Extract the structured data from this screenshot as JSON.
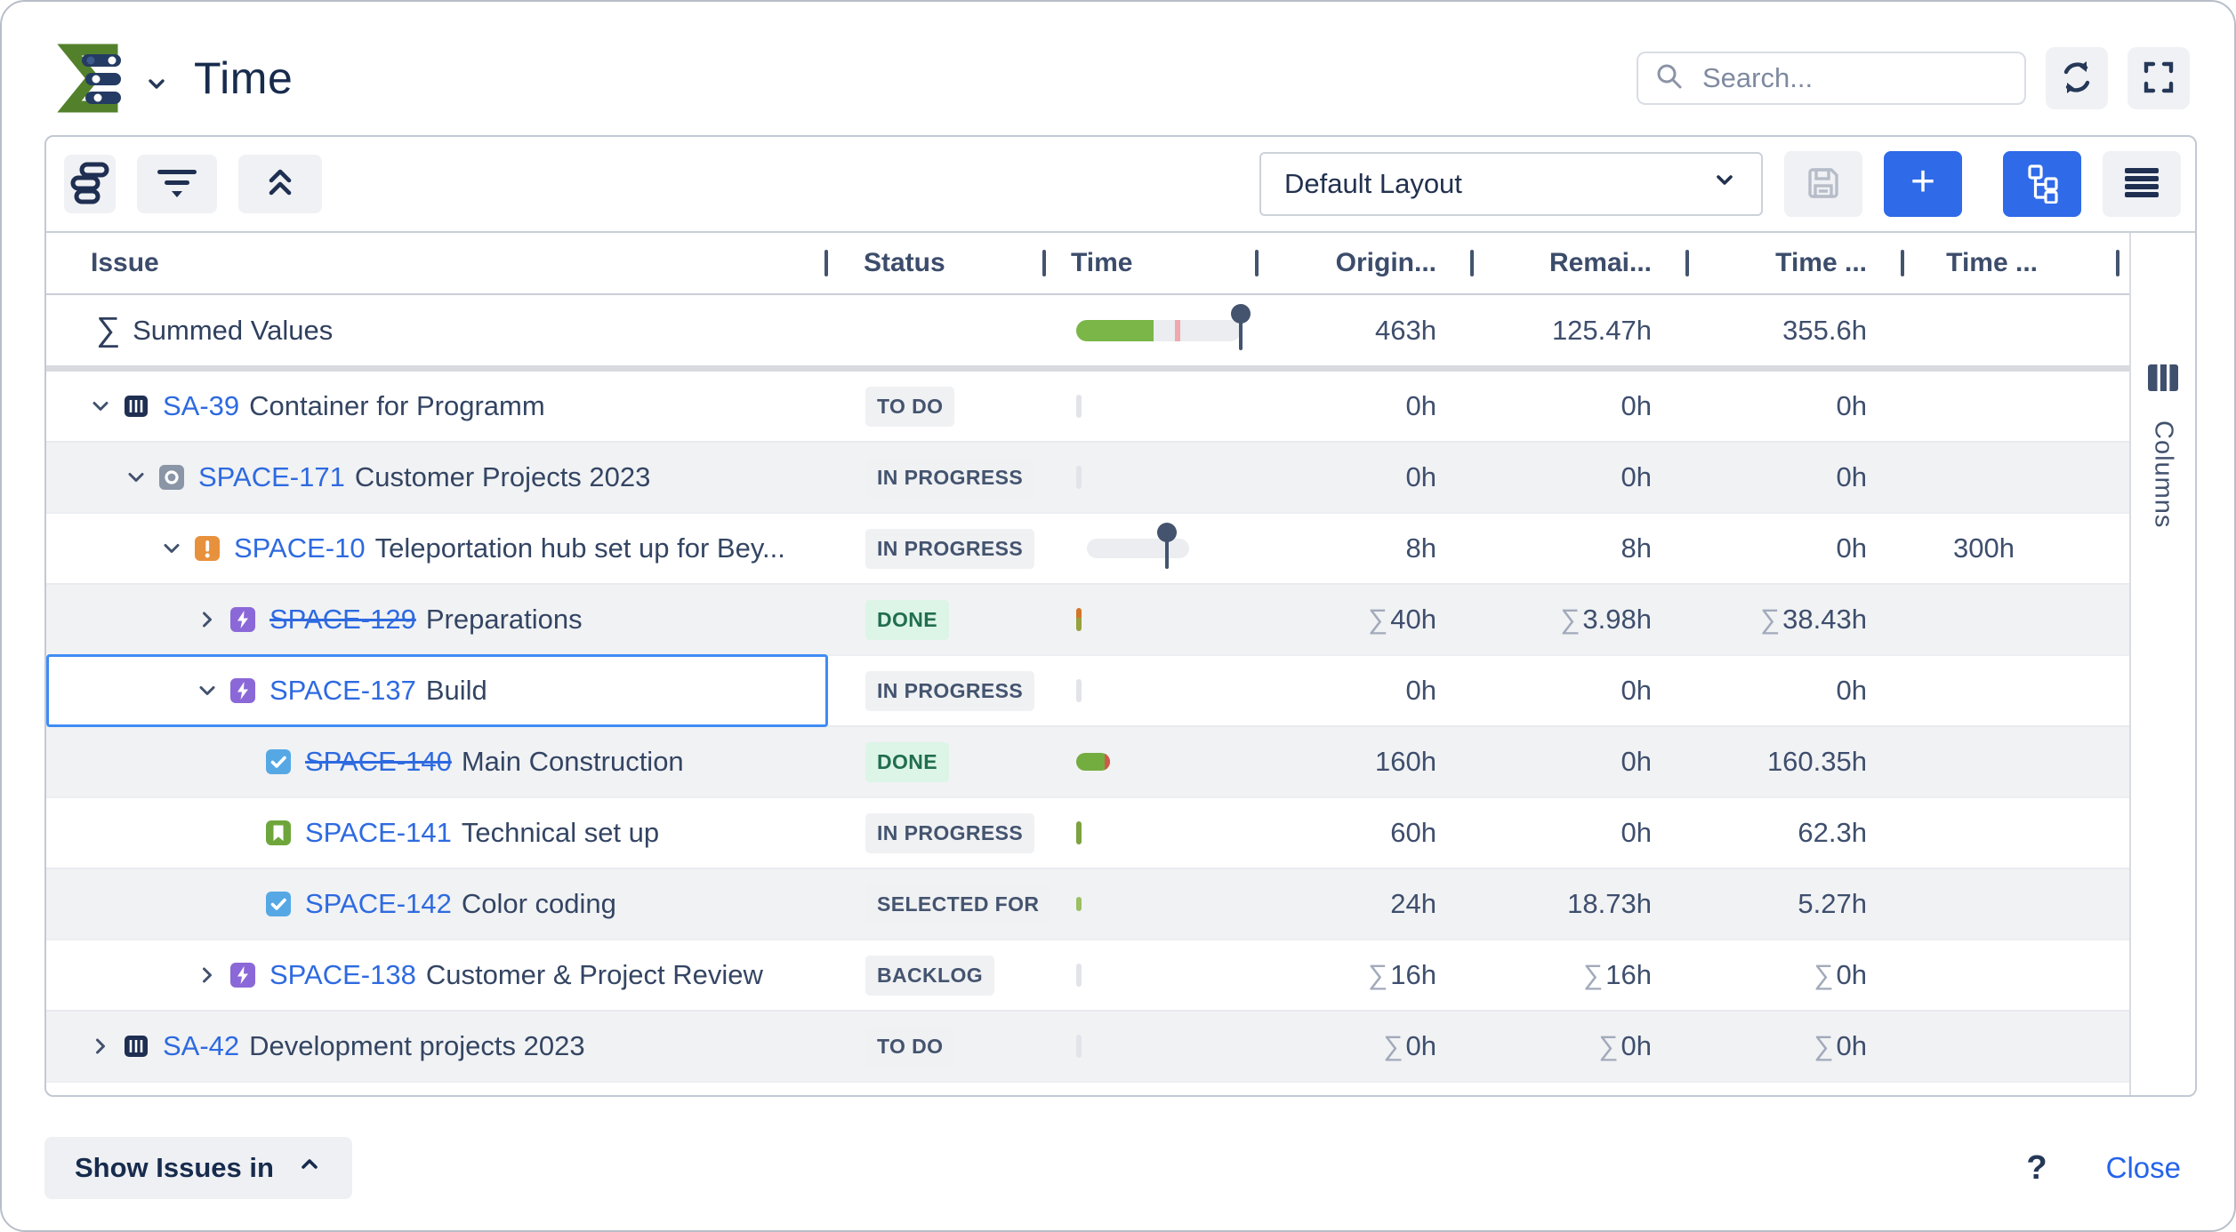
{
  "header": {
    "title": "Time",
    "search_placeholder": "Search..."
  },
  "toolbar": {
    "layout_select": "Default Layout"
  },
  "table": {
    "columns": [
      "Issue",
      "Status",
      "Time",
      "Origin...",
      "Remai...",
      "Time ...",
      "Time ..."
    ],
    "sum_symbol": "∑",
    "summed": {
      "label": "Summed Values",
      "original": "463h",
      "remaining": "125.47h",
      "time_spent": "355.6h"
    },
    "rows": [
      {
        "key": "SA-39",
        "summary": "Container for Programm",
        "level": 0,
        "chevron": "expanded",
        "icon": "container-icon",
        "status": "TO DO",
        "time": "sliver-gray",
        "original": "0h",
        "remaining": "0h",
        "time_spent": "0h"
      },
      {
        "key": "SPACE-171",
        "summary": "Customer Projects 2023",
        "level": 1,
        "chevron": "expanded",
        "icon": "program-icon",
        "status": "IN PROGRESS",
        "time": "sliver-gray",
        "original": "0h",
        "remaining": "0h",
        "time_spent": "0h"
      },
      {
        "key": "SPACE-10",
        "summary": "Teleportation hub set up for Bey...",
        "level": 2,
        "chevron": "expanded",
        "icon": "alert-icon",
        "status": "IN PROGRESS",
        "time": "pin-track",
        "original": "8h",
        "remaining": "8h",
        "time_spent": "0h",
        "time_estimate": "300h"
      },
      {
        "key": "SPACE-129",
        "summary": "Preparations",
        "level": 3,
        "chevron": "collapsed",
        "icon": "epic-icon",
        "status": "DONE",
        "time": "sliver-mixed",
        "original": "40h",
        "remaining": "3.98h",
        "time_spent": "38.43h",
        "sum_prefix": true,
        "struck": true
      },
      {
        "key": "SPACE-137",
        "summary": "Build",
        "level": 3,
        "chevron": "expanded",
        "icon": "epic-icon",
        "status": "IN PROGRESS",
        "time": "sliver-gray",
        "original": "0h",
        "remaining": "0h",
        "time_spent": "0h",
        "selected": true
      },
      {
        "key": "SPACE-140",
        "summary": "Main Construction",
        "level": 4,
        "chevron": null,
        "icon": "task-icon",
        "status": "DONE",
        "time": "green-pill",
        "original": "160h",
        "remaining": "0h",
        "time_spent": "160.35h",
        "struck": true
      },
      {
        "key": "SPACE-141",
        "summary": "Technical set up",
        "level": 4,
        "chevron": null,
        "icon": "story-icon",
        "status": "IN PROGRESS",
        "time": "sliver-green",
        "original": "60h",
        "remaining": "0h",
        "time_spent": "62.3h"
      },
      {
        "key": "SPACE-142",
        "summary": "Color coding",
        "level": 4,
        "chevron": null,
        "icon": "task-icon",
        "status": "SELECTED FOR",
        "time": "sliver-green-small",
        "original": "24h",
        "remaining": "18.73h",
        "time_spent": "5.27h"
      },
      {
        "key": "SPACE-138",
        "summary": "Customer & Project Review",
        "level": 3,
        "chevron": "collapsed",
        "icon": "epic-icon",
        "status": "BACKLOG",
        "time": "sliver-gray",
        "original": "16h",
        "remaining": "16h",
        "time_spent": "0h",
        "sum_prefix": true
      },
      {
        "key": "SA-42",
        "summary": "Development projects 2023",
        "level": 0,
        "chevron": "collapsed",
        "icon": "container-icon",
        "status": "TO DO",
        "time": "sliver-gray",
        "original": "0h",
        "remaining": "0h",
        "time_spent": "0h",
        "sum_prefix": true
      }
    ]
  },
  "columns_panel": {
    "label": "Columns"
  },
  "footer": {
    "show_issues": "Show Issues in",
    "help": "?",
    "close": "Close"
  },
  "colors": {
    "accent_blue": "#2f6ae8",
    "link_blue": "#2e6ae0",
    "selection_blue": "#3f8cf4",
    "progress_green": "#7ab648",
    "overrun_pink": "#f0a8ad",
    "pin_navy": "#44546f",
    "done_badge_bg": "#dcf5e7",
    "done_badge_text": "#216e4e"
  }
}
